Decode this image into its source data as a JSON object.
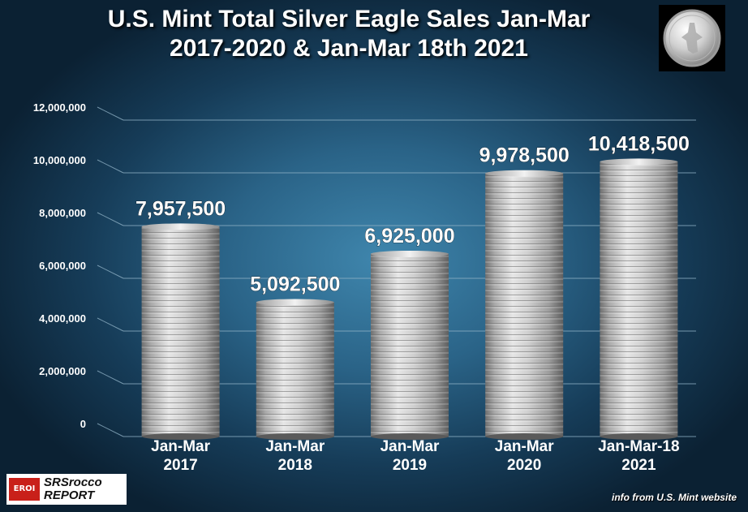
{
  "title": {
    "line1": "U.S. Mint Total Silver Eagle Sales Jan-Mar",
    "line2": "2017-2020 & Jan-Mar 18th 2021"
  },
  "coin_icon": "silver-eagle-coin-icon",
  "logo": {
    "badge": "EROI",
    "line1": "SRSrocco",
    "line2": "REPORT"
  },
  "source_note": "info from U.S. Mint website",
  "colors": {
    "background_center": "#3f86ad",
    "background_edge": "#0b2133",
    "bar_silver": "#c9c9c9",
    "text": "#ffffff",
    "gridline": "#8fb0c4"
  },
  "chart_data": {
    "type": "bar",
    "title": "U.S. Mint Total Silver Eagle Sales Jan-Mar 2017-2020 & Jan-Mar 18th 2021",
    "categories": [
      [
        "Jan-Mar",
        "2017"
      ],
      [
        "Jan-Mar",
        "2018"
      ],
      [
        "Jan-Mar",
        "2019"
      ],
      [
        "Jan-Mar",
        "2020"
      ],
      [
        "Jan-Mar-18",
        "2021"
      ]
    ],
    "values": [
      7957500,
      5092500,
      6925000,
      9978500,
      10418500
    ],
    "value_labels": [
      "7,957,500",
      "5,092,500",
      "6,925,000",
      "9,978,500",
      "10,418,500"
    ],
    "ylim": [
      0,
      12000000
    ],
    "y_ticks": [
      0,
      2000000,
      4000000,
      6000000,
      8000000,
      10000000,
      12000000
    ],
    "y_tick_labels": [
      "0",
      "2,000,000",
      "4,000,000",
      "6,000,000",
      "8,000,000",
      "10,000,000",
      "12,000,000"
    ],
    "xlabel": "",
    "ylabel": "",
    "grid": true,
    "legend": "none",
    "bar_style": "stacked silver coins"
  }
}
